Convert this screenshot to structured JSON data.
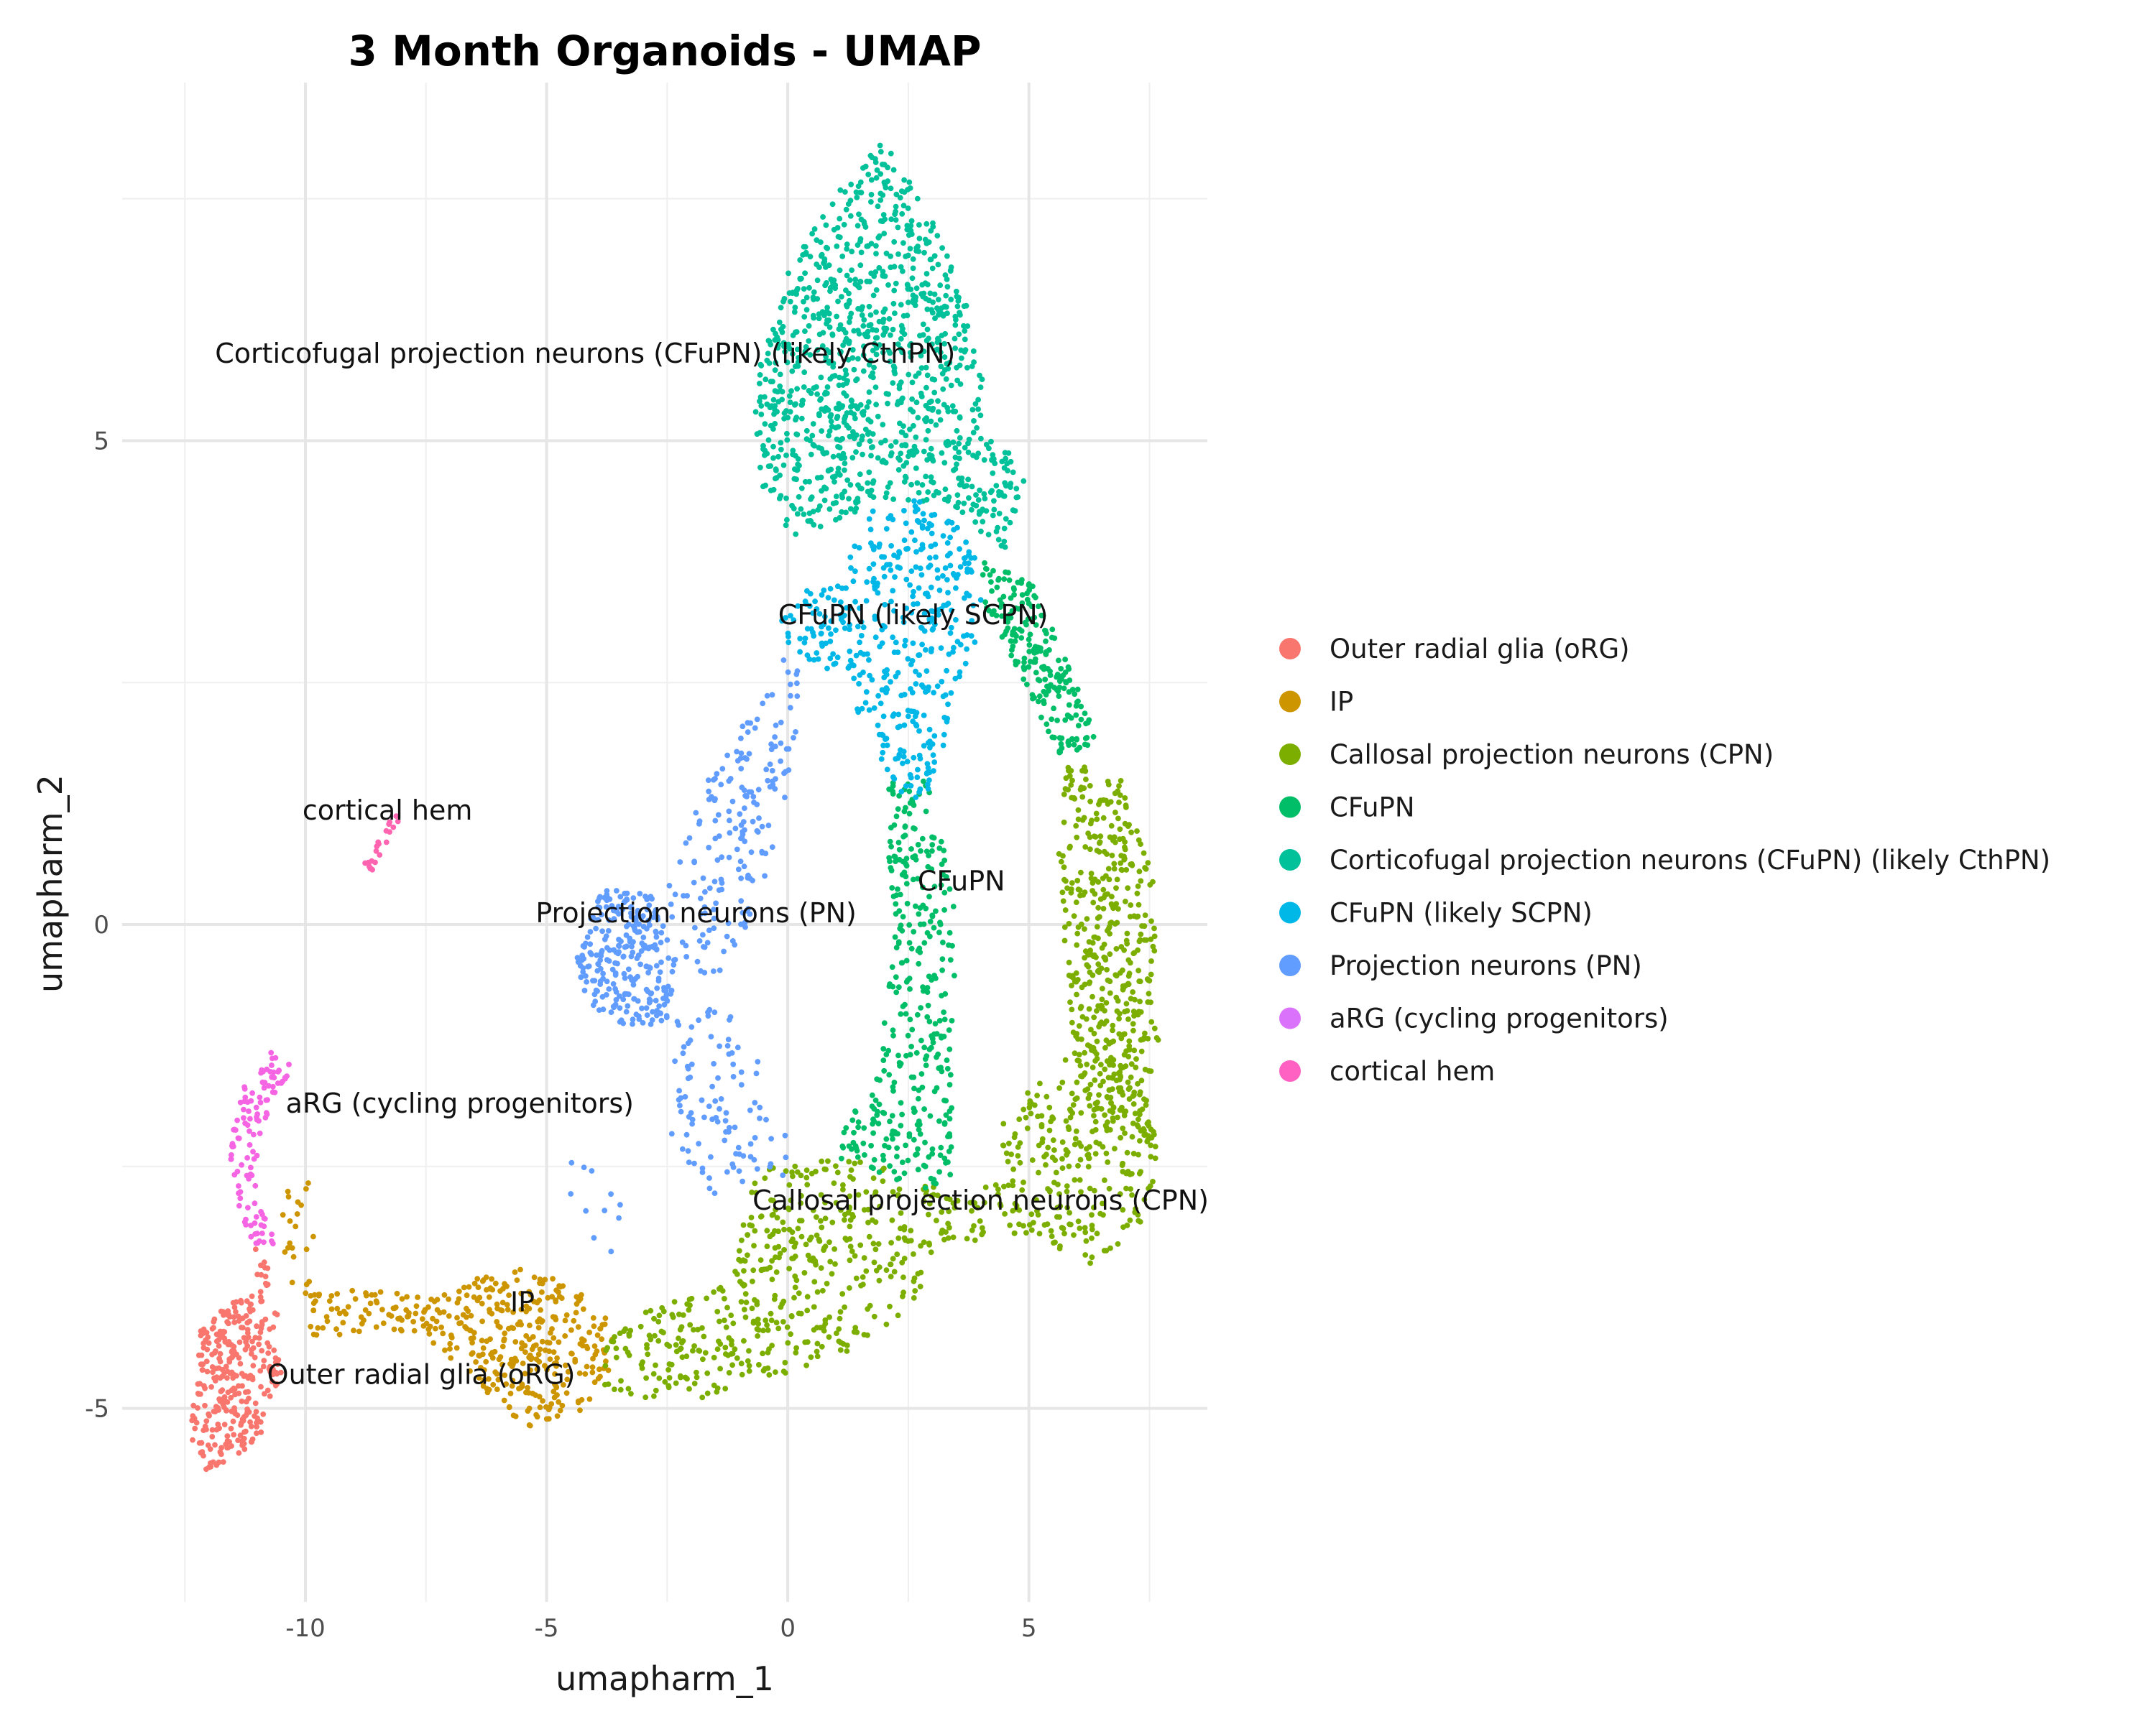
{
  "chart_data": {
    "type": "scatter",
    "title": "3 Month Organoids - UMAP",
    "xlabel": "umapharm_1",
    "ylabel": "umapharm_2",
    "xlim": [
      -13.8,
      8.7
    ],
    "ylim": [
      -7.0,
      8.7
    ],
    "x_ticks": [
      -10,
      -5,
      0,
      5
    ],
    "y_ticks": [
      -5,
      0,
      5
    ],
    "x_tick_labels": [
      "-10",
      "-5",
      "0",
      "5"
    ],
    "y_tick_labels": [
      "-5",
      "0",
      "5"
    ],
    "grid": true,
    "legend_position": "right",
    "series": [
      {
        "name": "Outer radial glia (oRG)",
        "color": "#F8766D",
        "count": 320,
        "regions": [
          {
            "points": [
              [
                -12.4,
                -5.3
              ],
              [
                -12.2,
                -4.2
              ],
              [
                -11.8,
                -4.0
              ],
              [
                -11.2,
                -3.8
              ],
              [
                -10.6,
                -3.9
              ],
              [
                -10.5,
                -4.7
              ],
              [
                -11.0,
                -5.4
              ],
              [
                -11.8,
                -5.6
              ],
              [
                -12.1,
                -5.7
              ]
            ],
            "weight": 1
          },
          {
            "points": [
              [
                -11.1,
                -3.3
              ],
              [
                -10.9,
                -4.0
              ],
              [
                -10.7,
                -3.6
              ]
            ],
            "weight": 0.05
          }
        ]
      },
      {
        "name": "IP",
        "color": "#CD9600",
        "count": 420,
        "regions": [
          {
            "points": [
              [
                -7.6,
                -3.9
              ],
              [
                -6.8,
                -3.7
              ],
              [
                -5.5,
                -3.55
              ],
              [
                -4.5,
                -3.7
              ],
              [
                -3.6,
                -4.1
              ],
              [
                -3.7,
                -4.7
              ],
              [
                -4.5,
                -5.15
              ],
              [
                -5.4,
                -5.2
              ],
              [
                -6.1,
                -4.9
              ],
              [
                -7.0,
                -4.5
              ],
              [
                -7.7,
                -4.2
              ]
            ],
            "weight": 1
          },
          {
            "points": [
              [
                -10.0,
                -3.8
              ],
              [
                -8.6,
                -3.7
              ],
              [
                -7.6,
                -3.8
              ],
              [
                -7.6,
                -4.2
              ],
              [
                -8.6,
                -4.2
              ],
              [
                -10.0,
                -4.3
              ]
            ],
            "weight": 0.22
          },
          {
            "points": [
              [
                -10.5,
                -2.4
              ],
              [
                -9.8,
                -2.4
              ],
              [
                -9.8,
                -3.8
              ],
              [
                -10.5,
                -3.8
              ]
            ],
            "weight": 0.06
          }
        ]
      },
      {
        "name": "Callosal projection neurons (CPN)",
        "color": "#7CAE00",
        "count": 1250,
        "regions": [
          {
            "points": [
              [
                -3.8,
                -4.2
              ],
              [
                -2.5,
                -3.9
              ],
              [
                -1.2,
                -3.6
              ],
              [
                -0.6,
                -2.5
              ],
              [
                1.5,
                -2.4
              ],
              [
                4.0,
                -2.9
              ],
              [
                4.5,
                -1.9
              ],
              [
                6.0,
                -1.3
              ],
              [
                6.8,
                -1.0
              ],
              [
                7.7,
                -2.2
              ],
              [
                7.5,
                -3.0
              ],
              [
                6.2,
                -3.6
              ],
              [
                5.3,
                -3.2
              ],
              [
                3.2,
                -3.3
              ],
              [
                2.5,
                -4.0
              ],
              [
                1.0,
                -4.5
              ],
              [
                -0.5,
                -4.7
              ],
              [
                -1.5,
                -4.9
              ],
              [
                -3.0,
                -4.9
              ],
              [
                -3.8,
                -4.8
              ]
            ],
            "weight": 1.8
          },
          {
            "points": [
              [
                5.8,
                1.7
              ],
              [
                6.9,
                1.5
              ],
              [
                7.6,
                0.5
              ],
              [
                7.7,
                -1.2
              ],
              [
                7.5,
                -2.3
              ],
              [
                6.0,
                -1.8
              ],
              [
                5.8,
                -0.6
              ],
              [
                5.6,
                0.8
              ]
            ],
            "weight": 1
          }
        ]
      },
      {
        "name": "CFuPN",
        "color": "#00BE67",
        "count": 560,
        "regions": [
          {
            "points": [
              [
                2.0,
                1.5
              ],
              [
                2.9,
                1.5
              ],
              [
                3.5,
                0.2
              ],
              [
                3.4,
                -1.5
              ],
              [
                3.4,
                -2.6
              ],
              [
                2.9,
                -2.8
              ],
              [
                1.6,
                -2.5
              ],
              [
                0.8,
                -2.4
              ],
              [
                1.8,
                -1.6
              ],
              [
                2.2,
                -0.2
              ]
            ],
            "weight": 1.3
          },
          {
            "points": [
              [
                4.0,
                3.8
              ],
              [
                5.0,
                3.6
              ],
              [
                5.9,
                2.6
              ],
              [
                6.4,
                1.9
              ],
              [
                5.7,
                1.6
              ],
              [
                4.8,
                2.6
              ],
              [
                4.1,
                3.3
              ]
            ],
            "weight": 0.8
          }
        ]
      },
      {
        "name": "Corticofugal projection neurons (CFuPN) (likely CthPN)",
        "color": "#00BFC4_teal",
        "count": 1050,
        "fill": "#00C19A",
        "regions": [
          {
            "points": [
              [
                -0.7,
                5.6
              ],
              [
                0.0,
                6.8
              ],
              [
                1.2,
                7.7
              ],
              [
                2.0,
                8.1
              ],
              [
                3.0,
                7.3
              ],
              [
                3.7,
                6.4
              ],
              [
                4.2,
                5.3
              ],
              [
                4.9,
                4.6
              ],
              [
                4.5,
                3.8
              ],
              [
                3.5,
                4.3
              ],
              [
                2.0,
                4.4
              ],
              [
                0.7,
                4.1
              ],
              [
                0.0,
                4.0
              ],
              [
                -0.6,
                4.6
              ]
            ],
            "weight": 1
          }
        ]
      },
      {
        "name": "CFuPN (likely SCPN)",
        "color": "#00B8E7",
        "count": 420,
        "regions": [
          {
            "points": [
              [
                1.8,
                4.3
              ],
              [
                2.8,
                4.4
              ],
              [
                3.8,
                4.0
              ],
              [
                4.2,
                3.2
              ],
              [
                3.5,
                2.5
              ],
              [
                3.2,
                1.5
              ],
              [
                2.5,
                1.2
              ],
              [
                1.6,
                2.0
              ],
              [
                1.2,
                2.5
              ],
              [
                0.0,
                2.8
              ],
              [
                -0.2,
                3.3
              ],
              [
                1.0,
                3.6
              ]
            ],
            "weight": 1
          }
        ]
      },
      {
        "name": "Projection neurons (PN)",
        "color": "#619CFF",
        "count": 560,
        "regions": [
          {
            "points": [
              [
                -4.4,
                -0.3
              ],
              [
                -3.8,
                0.4
              ],
              [
                -2.8,
                0.3
              ],
              [
                -2.3,
                -0.4
              ],
              [
                -2.5,
                -1.0
              ],
              [
                -3.2,
                -1.1
              ],
              [
                -4.2,
                -0.8
              ]
            ],
            "weight": 1.2
          },
          {
            "points": [
              [
                -2.6,
                0.2
              ],
              [
                -1.7,
                1.5
              ],
              [
                -0.6,
                2.3
              ],
              [
                -0.1,
                3.0
              ],
              [
                0.3,
                2.5
              ],
              [
                0.0,
                1.2
              ],
              [
                -0.6,
                0.3
              ],
              [
                -1.2,
                -0.5
              ],
              [
                -2.0,
                -0.5
              ]
            ],
            "weight": 0.8
          },
          {
            "points": [
              [
                -2.3,
                -1.0
              ],
              [
                -1.2,
                -0.8
              ],
              [
                0.0,
                -2.0
              ],
              [
                0.0,
                -2.6
              ],
              [
                -1.5,
                -2.8
              ],
              [
                -2.5,
                -2.2
              ]
            ],
            "weight": 0.45
          },
          {
            "points": [
              [
                -4.5,
                -2.4
              ],
              [
                -3.2,
                -2.4
              ],
              [
                -3.2,
                -3.6
              ],
              [
                -4.5,
                -3.6
              ]
            ],
            "weight": 0.05
          }
        ]
      },
      {
        "name": "aRG (cycling progenitors)",
        "color": "#F564E3",
        "count": 115,
        "regions": [
          {
            "points": [
              [
                -11.3,
                -1.7
              ],
              [
                -10.6,
                -1.25
              ],
              [
                -10.2,
                -1.5
              ],
              [
                -10.8,
                -2.0
              ],
              [
                -11.1,
                -2.6
              ],
              [
                -10.6,
                -3.3
              ],
              [
                -11.2,
                -3.3
              ],
              [
                -11.6,
                -2.4
              ],
              [
                -11.5,
                -2.0
              ]
            ],
            "weight": 1
          }
        ]
      },
      {
        "name": "cortical hem",
        "color": "#FF64B0",
        "count": 22,
        "regions": [
          {
            "points": [
              [
                -8.8,
                0.6
              ],
              [
                -8.2,
                1.15
              ],
              [
                -8.0,
                1.1
              ],
              [
                -8.6,
                0.55
              ]
            ],
            "weight": 1
          }
        ]
      }
    ],
    "annotations": [
      {
        "text": "Corticofugal projection neurons (CFuPN) (likely CthPN)",
        "x": -4.2,
        "y": 5.9
      },
      {
        "text": "CFuPN (likely SCPN)",
        "x": 2.6,
        "y": 3.2
      },
      {
        "text": "cortical hem",
        "x": -8.3,
        "y": 1.18
      },
      {
        "text": "Projection neurons (PN)",
        "x": -1.9,
        "y": 0.12
      },
      {
        "text": "CFuPN",
        "x": 3.6,
        "y": 0.45
      },
      {
        "text": "aRG (cycling progenitors)",
        "x": -6.8,
        "y": -1.85
      },
      {
        "text": "Callosal projection neurons (CPN)",
        "x": 4.0,
        "y": -2.85
      },
      {
        "text": "IP",
        "x": -5.5,
        "y": -3.9
      },
      {
        "text": "Outer radial glia (oRG)",
        "x": -7.6,
        "y": -4.65
      }
    ],
    "legend": [
      {
        "label": "Outer radial glia (oRG)",
        "color": "#F8766D"
      },
      {
        "label": "IP",
        "color": "#CD9600"
      },
      {
        "label": "Callosal projection neurons (CPN)",
        "color": "#7CAE00"
      },
      {
        "label": "CFuPN",
        "color": "#00BE67"
      },
      {
        "label": "Corticofugal projection neurons (CFuPN) (likely CthPN)",
        "color": "#00C19A"
      },
      {
        "label": "CFuPN (likely SCPN)",
        "color": "#00B8E7"
      },
      {
        "label": "Projection neurons (PN)",
        "color": "#619CFF"
      },
      {
        "label": "aRG (cycling progenitors)",
        "color": "#DB72FB"
      },
      {
        "label": "cortical hem",
        "color": "#FF61C3"
      }
    ]
  }
}
